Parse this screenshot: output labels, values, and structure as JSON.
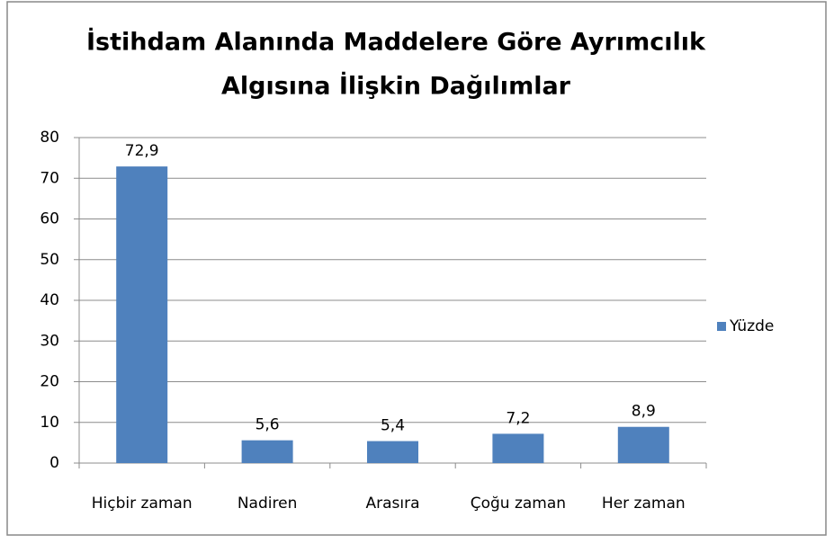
{
  "chart_data": {
    "type": "bar",
    "title": [
      "İstihdam Alanında Maddelere Göre Ayrımcılık",
      "Algısına İlişkin Dağılımlar"
    ],
    "categories": [
      "Hiçbir zaman",
      "Nadiren",
      "Arasıra",
      "Çoğu zaman",
      "Her zaman"
    ],
    "series": [
      {
        "name": "Yüzde",
        "color": "#4f81bd",
        "values": [
          72.9,
          5.6,
          5.4,
          7.2,
          8.9
        ],
        "value_labels": [
          "72,9",
          "5,6",
          "5,4",
          "7,2",
          "8,9"
        ]
      }
    ],
    "ylim": [
      0,
      80
    ],
    "yticks": [
      0,
      10,
      20,
      30,
      40,
      50,
      60,
      70,
      80
    ],
    "grid": true,
    "legend": "right"
  }
}
